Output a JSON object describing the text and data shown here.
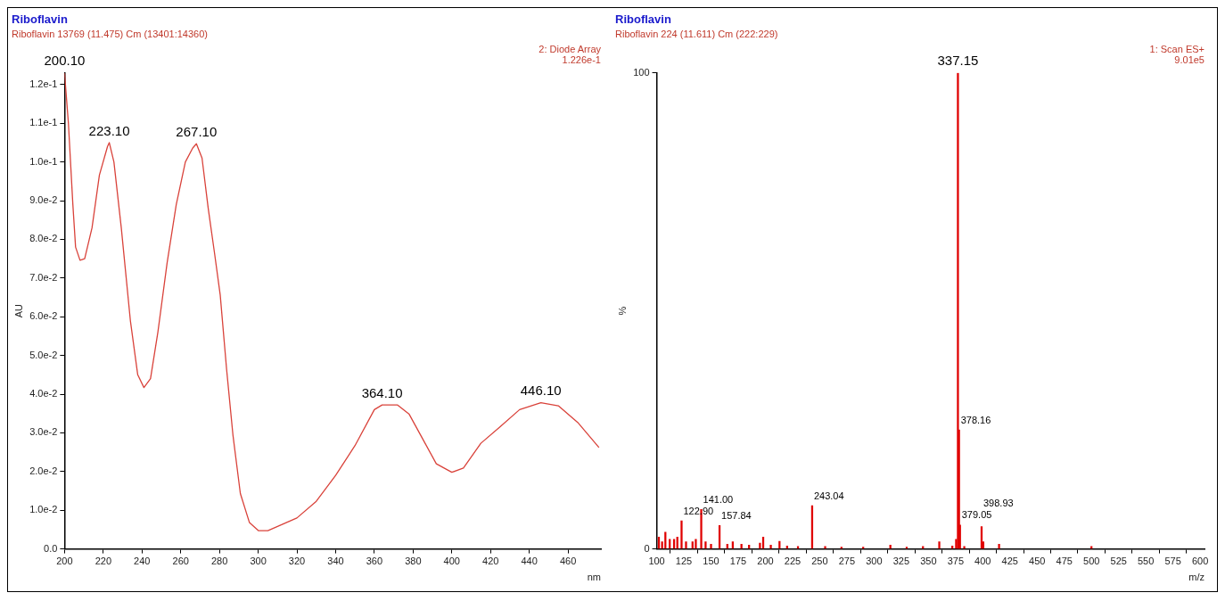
{
  "chart_data": [
    {
      "type": "line",
      "title": "Riboflavin",
      "subtitle": "Riboflavin 13769 (11.475) Cm (13401:14360)",
      "xlabel": "nm",
      "ylabel": "AU",
      "x": [
        200,
        202,
        204.3,
        205.7,
        208,
        210.4,
        214.2,
        218,
        222.2,
        223.1,
        225.5,
        229.3,
        234,
        237.8,
        241,
        244.4,
        248.2,
        253,
        257.7,
        262.4,
        266.2,
        268.1,
        271,
        274.2,
        277.5,
        280.4,
        283.7,
        287,
        290.8,
        295.5,
        300.2,
        305,
        310,
        320,
        330,
        340,
        350,
        360,
        364,
        372,
        378,
        385,
        392,
        400,
        406,
        415,
        425,
        435,
        446,
        455,
        465,
        476
      ],
      "series": [
        {
          "color": "#d9423a",
          "values": [
            0.123,
            0.11,
            0.089,
            0.078,
            0.0746,
            0.075,
            0.083,
            0.0966,
            0.104,
            0.105,
            0.1,
            0.083,
            0.059,
            0.045,
            0.0417,
            0.044,
            0.056,
            0.074,
            0.089,
            0.1,
            0.1036,
            0.1047,
            0.101,
            0.088,
            0.0763,
            0.0656,
            0.0464,
            0.0293,
            0.0143,
            0.0068,
            0.0047,
            0.0047,
            0.0058,
            0.008,
            0.0123,
            0.019,
            0.0267,
            0.036,
            0.0372,
            0.0372,
            0.0348,
            0.0284,
            0.022,
            0.0198,
            0.0209,
            0.0273,
            0.0316,
            0.036,
            0.0378,
            0.037,
            0.0327,
            0.0262
          ]
        }
      ],
      "xlim": [
        200,
        477
      ],
      "xticks": [
        200,
        220,
        240,
        260,
        280,
        300,
        320,
        340,
        360,
        380,
        400,
        420,
        440,
        460
      ],
      "ylim": [
        0,
        0.123
      ],
      "yticks": [
        {
          "value": 0,
          "label": "0.0"
        },
        {
          "value": 0.01,
          "label": "1.0e-2"
        },
        {
          "value": 0.02,
          "label": "2.0e-2"
        },
        {
          "value": 0.03,
          "label": "3.0e-2"
        },
        {
          "value": 0.04,
          "label": "4.0e-2"
        },
        {
          "value": 0.05,
          "label": "5.0e-2"
        },
        {
          "value": 0.06,
          "label": "6.0e-2"
        },
        {
          "value": 0.07,
          "label": "7.0e-2"
        },
        {
          "value": 0.08,
          "label": "8.0e-2"
        },
        {
          "value": 0.09,
          "label": "9.0e-2"
        },
        {
          "value": 0.1,
          "label": "1.0e-1"
        },
        {
          "value": 0.11,
          "label": "1.1e-1"
        },
        {
          "value": 0.12,
          "label": "1.2e-1"
        }
      ],
      "grid": false,
      "legend": false,
      "annotations": [
        "2: Diode Array",
        "1.226e-1",
        {
          "text": "200.10",
          "x": 200,
          "y": 0.123
        },
        {
          "text": "223.10",
          "x": 223.1,
          "y": 0.105
        },
        {
          "text": "267.10",
          "x": 268.1,
          "y": 0.1047
        },
        {
          "text": "364.10",
          "x": 364,
          "y": 0.0372
        },
        {
          "text": "446.10",
          "x": 446,
          "y": 0.0378
        }
      ]
    },
    {
      "type": "bar",
      "title": "Riboflavin",
      "subtitle": "Riboflavin 224 (11.611) Cm (222:229)",
      "xlabel": "m/z",
      "ylabel": "%",
      "x": [
        102,
        105,
        108,
        112,
        116,
        119,
        122.9,
        127,
        133,
        136,
        141,
        145,
        150,
        157.84,
        165,
        170,
        178,
        185,
        195,
        198,
        205,
        213,
        220,
        230,
        243.04,
        255,
        270,
        290,
        315,
        330,
        345,
        360,
        372,
        375.5,
        377.15,
        378.16,
        379.05,
        383,
        398.93,
        400.5,
        415,
        500
      ],
      "series": [
        {
          "color": "#e00000",
          "values": [
            2.5,
            1.5,
            3.5,
            2,
            2,
            2.5,
            5.9,
            1.5,
            1.5,
            2,
            8.3,
            1.5,
            1,
            4.9,
            1,
            1.5,
            1,
            0.8,
            1.2,
            2.5,
            0.8,
            1.6,
            0.6,
            0.5,
            9.1,
            0.5,
            0.4,
            0.4,
            0.8,
            0.4,
            0.5,
            1.5,
            0.6,
            2,
            100,
            25,
            5,
            0.5,
            4.7,
            1.5,
            1,
            0.5
          ]
        }
      ],
      "xlim": [
        100,
        604
      ],
      "xticks": [
        100,
        125,
        150,
        175,
        200,
        225,
        250,
        275,
        300,
        325,
        350,
        375,
        400,
        425,
        450,
        475,
        500,
        525,
        550,
        575,
        600
      ],
      "ylim": [
        0,
        100
      ],
      "yticks": [
        0,
        100
      ],
      "grid": false,
      "legend": false,
      "annotations": [
        "1: Scan ES+",
        "9.01e5",
        {
          "text": "337.15",
          "x": 377.15,
          "y": 100
        },
        {
          "text": "378.16",
          "x": 378.16,
          "y": 25
        },
        {
          "text": "379.05",
          "x": 379.05,
          "y": 5
        },
        {
          "text": "398.93",
          "x": 398.93,
          "y": 4.7
        },
        {
          "text": "243.04",
          "x": 243.04,
          "y": 9.1
        },
        {
          "text": "141.00",
          "x": 141,
          "y": 8.3
        },
        {
          "text": "122.90",
          "x": 122.9,
          "y": 5.9
        },
        {
          "text": "157.84",
          "x": 157.84,
          "y": 4.9
        }
      ]
    }
  ]
}
